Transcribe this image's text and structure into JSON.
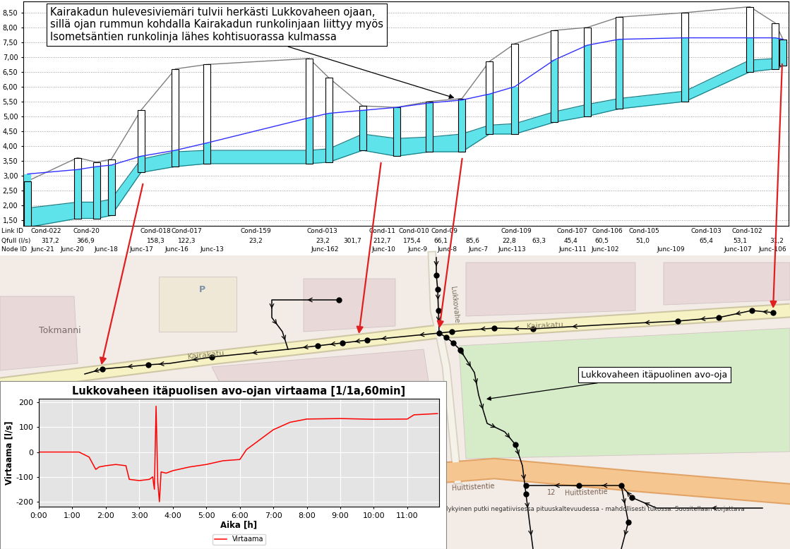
{
  "chart_data": [
    {
      "type": "profile",
      "annotation": "Kairakadun hulevesiviemäri tulvii herkästi Lukkovaheen ojaan,\nsillä ojan rummun kohdalla Kairakadun runkolinjaan liittyy myös\nIsometsäntien runkolinja lähes kohtisuorassa kulmassa",
      "xlim": [
        30,
        1117
      ],
      "ylim": [
        1.3,
        8.88
      ],
      "yticks": [
        {
          "value": 1.5,
          "label": "1,50"
        },
        {
          "value": 2.0,
          "label": "2,00"
        },
        {
          "value": 2.5,
          "label": "2,50"
        },
        {
          "value": 3.0,
          "label": "3,00"
        },
        {
          "value": 3.5,
          "label": "3,50"
        },
        {
          "value": 4.0,
          "label": "4,00"
        },
        {
          "value": 4.5,
          "label": "4,50"
        },
        {
          "value": 5.0,
          "label": "5,00"
        },
        {
          "value": 5.5,
          "label": "5,50"
        },
        {
          "value": 6.0,
          "label": "6,00"
        },
        {
          "value": 6.5,
          "label": "6,50"
        },
        {
          "value": 7.0,
          "label": "7,00"
        },
        {
          "value": 7.5,
          "label": "7,50"
        },
        {
          "value": 8.0,
          "label": "8,00"
        },
        {
          "value": 8.5,
          "label": "8,50"
        }
      ],
      "grid": true,
      "x": [
        36,
        107,
        134,
        155,
        197,
        246,
        291,
        436,
        464,
        512,
        560,
        607,
        653,
        692,
        728,
        784,
        831,
        876,
        970,
        1062,
        1098,
        1109
      ],
      "ground": [
        2.81,
        3.6,
        3.45,
        3.55,
        5.2,
        6.6,
        6.75,
        6.95,
        6.3,
        5.35,
        5.3,
        5.5,
        5.6,
        6.85,
        7.45,
        7.9,
        8.0,
        8.35,
        8.5,
        8.7,
        8.15,
        7.6
      ],
      "invert": [
        1.25,
        1.55,
        1.55,
        1.65,
        3.1,
        3.3,
        3.4,
        3.4,
        3.45,
        3.85,
        3.65,
        3.8,
        3.8,
        4.4,
        4.4,
        4.8,
        5.0,
        5.25,
        5.5,
        6.5,
        6.6,
        6.7
      ],
      "crown": [
        1.9,
        2.1,
        2.1,
        2.2,
        3.55,
        3.8,
        3.85,
        3.85,
        3.9,
        4.4,
        4.25,
        4.3,
        4.4,
        4.7,
        4.75,
        5.15,
        5.4,
        5.6,
        5.85,
        6.9,
        6.95,
        7.0
      ],
      "water": [
        3.05,
        3.2,
        3.3,
        3.35,
        3.65,
        3.85,
        4.1,
        4.95,
        5.1,
        5.2,
        5.3,
        5.45,
        5.55,
        5.75,
        6.0,
        6.9,
        7.4,
        7.6,
        7.65,
        7.65,
        7.65,
        7.6
      ],
      "rows": [
        {
          "label": "Link ID",
          "items": [
            {
              "x": 62,
              "text": "Cond-022"
            },
            {
              "x": 120,
              "text": "Cond-20"
            },
            {
              "x": 218,
              "text": "Cond-018"
            },
            {
              "x": 262,
              "text": "Cond-017"
            },
            {
              "x": 360,
              "text": "Cond-159"
            },
            {
              "x": 455,
              "text": "Cond-013"
            },
            {
              "x": 540,
              "text": "Cond-11"
            },
            {
              "x": 585,
              "text": "Cond-010"
            },
            {
              "x": 628,
              "text": "Cond-09"
            },
            {
              "x": 730,
              "text": "Cond-109"
            },
            {
              "x": 810,
              "text": "Cond-107"
            },
            {
              "x": 860,
              "text": "Cond-106"
            },
            {
              "x": 912,
              "text": "Cond-105"
            },
            {
              "x": 1000,
              "text": "Cond-103"
            },
            {
              "x": 1058,
              "text": "Cond-102"
            }
          ]
        },
        {
          "label": "Qfull (l/s)",
          "items": [
            {
              "x": 68,
              "text": "317,2"
            },
            {
              "x": 118,
              "text": "366,9"
            },
            {
              "x": 218,
              "text": "158,3"
            },
            {
              "x": 262,
              "text": "122,3"
            },
            {
              "x": 360,
              "text": "23,2"
            },
            {
              "x": 455,
              "text": "23,2"
            },
            {
              "x": 497,
              "text": "301,7"
            },
            {
              "x": 540,
              "text": "212,7"
            },
            {
              "x": 582,
              "text": "175,4"
            },
            {
              "x": 623,
              "text": "66,1"
            },
            {
              "x": 668,
              "text": "85,6"
            },
            {
              "x": 720,
              "text": "22,8"
            },
            {
              "x": 762,
              "text": "63,3"
            },
            {
              "x": 808,
              "text": "45,4"
            },
            {
              "x": 852,
              "text": "60,5"
            },
            {
              "x": 910,
              "text": "51,0"
            },
            {
              "x": 1000,
              "text": "65,4"
            },
            {
              "x": 1048,
              "text": "53,1"
            },
            {
              "x": 1100,
              "text": "31,2"
            }
          ]
        },
        {
          "label": "Node ID",
          "items": [
            {
              "x": 57,
              "text": "Junc-21"
            },
            {
              "x": 100,
              "text": "Junc-20"
            },
            {
              "x": 148,
              "text": "Junc-18"
            },
            {
              "x": 198,
              "text": "Junc-17"
            },
            {
              "x": 248,
              "text": "Junc-16"
            },
            {
              "x": 298,
              "text": "Junc-13"
            },
            {
              "x": 458,
              "text": "Junc-162"
            },
            {
              "x": 542,
              "text": "Junc-10"
            },
            {
              "x": 590,
              "text": "Junc-9"
            },
            {
              "x": 632,
              "text": "Junc-8"
            },
            {
              "x": 676,
              "text": "Junc-7"
            },
            {
              "x": 724,
              "text": "Junc-113"
            },
            {
              "x": 810,
              "text": "Junc-111"
            },
            {
              "x": 856,
              "text": "Junc-102"
            },
            {
              "x": 950,
              "text": "Junc-109"
            },
            {
              "x": 1045,
              "text": "Junc-107"
            },
            {
              "x": 1094,
              "text": "Junc-106"
            }
          ]
        }
      ]
    },
    {
      "type": "line",
      "title": "Lukkovaheen itäpuolisen avo-ojan virtaama [1/1a,60min]",
      "x_label": "Aika [h]",
      "y_label": "Virtaama [l/s]",
      "x": [
        0,
        1.2,
        1.5,
        1.7,
        1.8,
        2.0,
        2.3,
        2.6,
        2.7,
        3.0,
        3.3,
        3.4,
        3.45,
        3.5,
        3.55,
        3.6,
        3.65,
        3.8,
        4.0,
        4.5,
        5.0,
        5.5,
        6.0,
        6.2,
        6.5,
        7.0,
        7.5,
        8.0,
        9.0,
        10.0,
        11.0,
        11.2,
        11.9
      ],
      "series": [
        {
          "name": "Virtaama",
          "color": "#ff0000",
          "values": [
            0,
            0,
            -20,
            -70,
            -60,
            -55,
            -50,
            -55,
            -110,
            -115,
            -110,
            -100,
            -150,
            185,
            -120,
            -200,
            -80,
            -85,
            -75,
            -60,
            -50,
            -35,
            -30,
            10,
            40,
            90,
            120,
            133,
            135,
            132,
            133,
            150,
            155
          ]
        }
      ],
      "xlim": [
        0,
        11.95
      ],
      "ylim": [
        -220,
        215
      ],
      "xticks": [
        {
          "value": 0,
          "label": "0:00"
        },
        {
          "value": 1,
          "label": "1:00"
        },
        {
          "value": 2,
          "label": "2:00"
        },
        {
          "value": 3,
          "label": "3:00"
        },
        {
          "value": 4,
          "label": "4:00"
        },
        {
          "value": 5,
          "label": "5:00"
        },
        {
          "value": 6,
          "label": "6:00"
        },
        {
          "value": 7,
          "label": "7:00"
        },
        {
          "value": 8,
          "label": "8:00"
        },
        {
          "value": 9,
          "label": "9:00"
        },
        {
          "value": 10,
          "label": "10:00"
        },
        {
          "value": 11,
          "label": "11:00"
        }
      ],
      "yticks": [
        -200,
        -100,
        0,
        100,
        200
      ],
      "grid": true,
      "legend": "bottom"
    }
  ],
  "map": {
    "labels": [
      "Tokmanni",
      "P",
      "Kairakatu",
      "Kairakatu",
      "Lukkovahe",
      "Huittistentie",
      "12",
      "Huittistentie"
    ],
    "callout": "Lukkovaheen itäpuolinen avo-oja",
    "note": "Nykyinen putki negatiivisessa pituuskaltevuudessa - mahdollisesti tukossa. Suositellaan korjattava"
  }
}
